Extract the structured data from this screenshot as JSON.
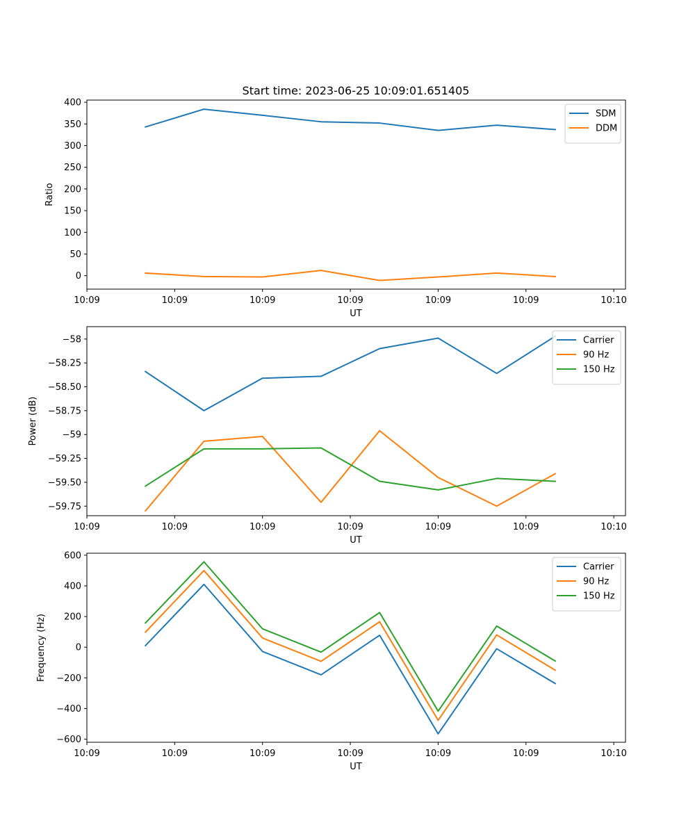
{
  "title": "Start time: 2023-06-25 10:09:01.651405",
  "chart_data": [
    {
      "type": "line",
      "xlabel": "UT",
      "ylabel": "Ratio",
      "x_tick_labels": [
        "10:09",
        "10:09",
        "10:09",
        "10:09",
        "10:09",
        "10:09",
        "10:10"
      ],
      "y_ticks": [
        0,
        50,
        100,
        150,
        200,
        250,
        300,
        350,
        400
      ],
      "ylim": [
        -31,
        405
      ],
      "x": [
        1,
        2,
        3,
        4,
        5,
        6,
        7,
        8
      ],
      "xlim": [
        0,
        9.2
      ],
      "x_tick_positions": [
        0,
        1.5,
        3,
        4.5,
        6,
        7.5,
        9
      ],
      "legend_position": "upper right",
      "grid": false,
      "series": [
        {
          "name": "SDM",
          "color": "#1f77b4",
          "values": [
            343,
            384,
            370,
            355,
            352,
            335,
            347,
            337
          ]
        },
        {
          "name": "DDM",
          "color": "#ff7f0e",
          "values": [
            6,
            -2,
            -3,
            12,
            -11,
            -3,
            6,
            -2
          ]
        }
      ]
    },
    {
      "type": "line",
      "xlabel": "UT",
      "ylabel": "Power (dB)",
      "x_tick_labels": [
        "10:09",
        "10:09",
        "10:09",
        "10:09",
        "10:09",
        "10:09",
        "10:10"
      ],
      "y_ticks": [
        -59.75,
        -59.5,
        -59.25,
        -59.0,
        -58.75,
        -58.5,
        -58.25,
        -58.0
      ],
      "ylim": [
        -59.85,
        -57.87
      ],
      "x": [
        1,
        2,
        3,
        4,
        5,
        6,
        7,
        8
      ],
      "xlim": [
        0,
        9.2
      ],
      "x_tick_positions": [
        0,
        1.5,
        3,
        4.5,
        6,
        7.5,
        9
      ],
      "legend_position": "upper right",
      "grid": false,
      "series": [
        {
          "name": "Carrier",
          "color": "#1f77b4",
          "values": [
            -58.34,
            -58.75,
            -58.41,
            -58.39,
            -58.1,
            -57.99,
            -58.36,
            -57.97
          ]
        },
        {
          "name": "90 Hz",
          "color": "#ff7f0e",
          "values": [
            -59.8,
            -59.07,
            -59.02,
            -59.71,
            -58.96,
            -59.45,
            -59.75,
            -59.41
          ]
        },
        {
          "name": "150 Hz",
          "color": "#2ca02c",
          "values": [
            -59.54,
            -59.15,
            -59.15,
            -59.14,
            -59.49,
            -59.58,
            -59.46,
            -59.49
          ]
        }
      ]
    },
    {
      "type": "line",
      "xlabel": "UT",
      "ylabel": "Frequency (Hz)",
      "x_tick_labels": [
        "10:09",
        "10:09",
        "10:09",
        "10:09",
        "10:09",
        "10:09",
        "10:10"
      ],
      "y_ticks": [
        -600,
        -400,
        -200,
        0,
        200,
        400,
        600
      ],
      "ylim": [
        -620,
        613
      ],
      "x": [
        1,
        2,
        3,
        4,
        5,
        6,
        7,
        8
      ],
      "xlim": [
        0,
        9.2
      ],
      "x_tick_positions": [
        0,
        1.5,
        3,
        4.5,
        6,
        7.5,
        9
      ],
      "legend_position": "upper right",
      "grid": false,
      "series": [
        {
          "name": "Carrier",
          "color": "#1f77b4",
          "values": [
            10,
            410,
            -28,
            -180,
            78,
            -565,
            -10,
            -237
          ]
        },
        {
          "name": "90 Hz",
          "color": "#ff7f0e",
          "values": [
            98,
            500,
            60,
            -92,
            166,
            -477,
            80,
            -150
          ]
        },
        {
          "name": "150 Hz",
          "color": "#2ca02c",
          "values": [
            158,
            557,
            120,
            -32,
            226,
            -417,
            138,
            -90
          ]
        }
      ]
    }
  ]
}
